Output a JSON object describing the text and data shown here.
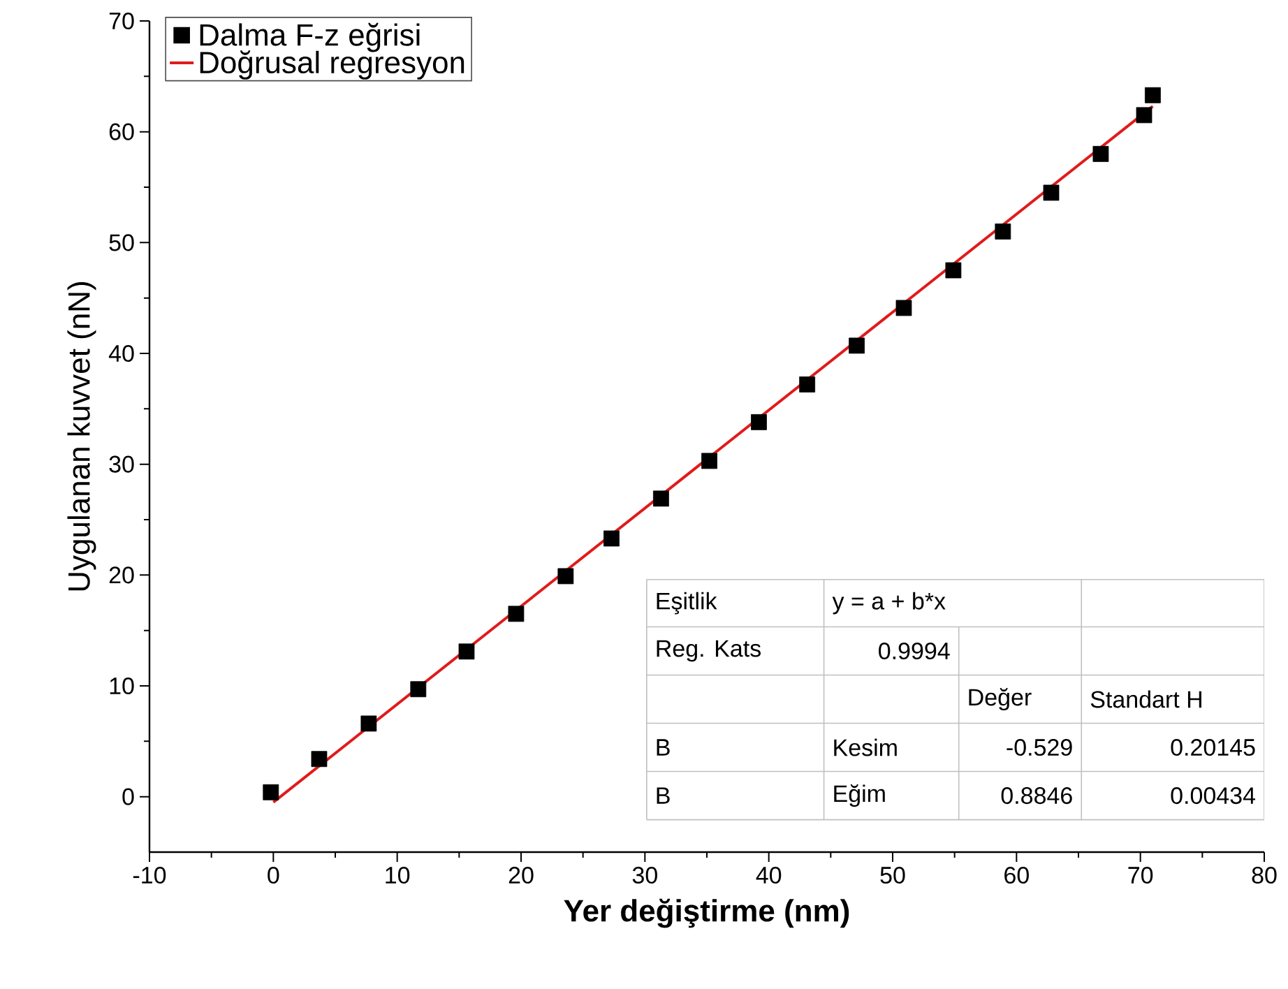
{
  "chart_data": {
    "type": "scatter",
    "xlabel": "Yer değiştirme (nm)",
    "ylabel": "Uygulanan kuvvet (nN)",
    "xlim": [
      -10,
      80
    ],
    "ylim": [
      -5,
      70
    ],
    "xticks": [
      -10,
      0,
      10,
      20,
      30,
      40,
      50,
      60,
      70,
      80
    ],
    "yticks": [
      0,
      10,
      20,
      30,
      40,
      50,
      60,
      70
    ],
    "grid": false,
    "legend": "top left",
    "marker": "square",
    "series": [
      {
        "name": "Dalma F-z eğrisi",
        "color": "#000000",
        "x": [
          -0.2,
          3.7,
          7.7,
          11.7,
          15.6,
          19.6,
          23.6,
          27.3,
          31.3,
          35.2,
          39.2,
          43.1,
          47.1,
          50.9,
          54.9,
          58.9,
          62.8,
          66.8,
          70.3,
          71.0
        ],
        "values": [
          0.4,
          3.4,
          6.6,
          9.7,
          13.1,
          16.5,
          19.9,
          23.3,
          26.9,
          30.3,
          33.8,
          37.2,
          40.7,
          44.1,
          47.5,
          51.0,
          54.5,
          58.0,
          61.5,
          63.3
        ]
      },
      {
        "name": "Doğrusal regresyon",
        "type": "line",
        "color": "#e01b1b",
        "marker": "none",
        "line_style": "solid",
        "x": [
          0,
          71
        ],
        "values": [
          -0.5,
          62.3
        ]
      }
    ],
    "annotations": [
      "Eşitlik",
      "y = a + b*x",
      "Reg. Kats",
      "0.9994",
      "Değer",
      "Standart H",
      "B",
      "Kesim",
      "-0.529",
      "0.20145",
      "B",
      "Eğim",
      "0.8846",
      "0.00434"
    ]
  }
}
